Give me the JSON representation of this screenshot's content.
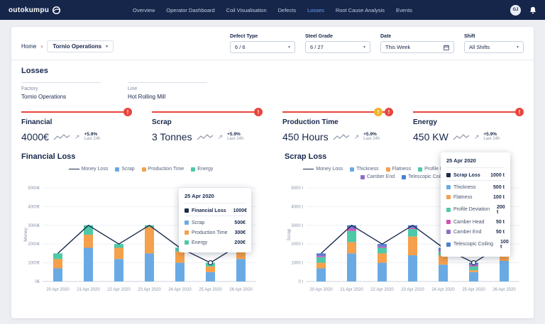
{
  "header": {
    "logo": "outokumpu",
    "avatar": "GJ",
    "nav": [
      {
        "label": "Overview",
        "active": false
      },
      {
        "label": "Operator Dashboard",
        "active": false
      },
      {
        "label": "Coil Visualisation",
        "active": false
      },
      {
        "label": "Defects",
        "active": false
      },
      {
        "label": "Losses",
        "active": true
      },
      {
        "label": "Root Cause Analysis",
        "active": false
      },
      {
        "label": "Events",
        "active": false
      }
    ]
  },
  "breadcrumb": {
    "home": "Home",
    "current": "Tornio Operations"
  },
  "filters": [
    {
      "label": "Defect Type",
      "value": "6 / 6",
      "icon": "chevron-down"
    },
    {
      "label": "Steel Grade",
      "value": "6 / 27",
      "icon": "chevron-down"
    },
    {
      "label": "Date",
      "value": "This Week",
      "icon": "calendar"
    },
    {
      "label": "Shift",
      "value": "All Shifts",
      "icon": "chevron-down"
    }
  ],
  "page": {
    "title": "Losses"
  },
  "info": {
    "factory_label": "Factory",
    "factory_value": "Tornio Operations",
    "line_label": "Line",
    "line_value": "Hot Rolling Mill"
  },
  "kpis": [
    {
      "title": "Financial",
      "value": "4000€",
      "delta": "+5.9%",
      "period": "Last 24h",
      "alerts": [
        "red"
      ]
    },
    {
      "title": "Scrap",
      "value": "3 Tonnes",
      "delta": "+5.9%",
      "period": "Last 24h",
      "alerts": [
        "red"
      ]
    },
    {
      "title": "Production Time",
      "value": "450 Hours",
      "delta": "+5.9%",
      "period": "Last 24h",
      "alerts": [
        "yellow",
        "red"
      ]
    },
    {
      "title": "Energy",
      "value": "450 KW",
      "delta": "+5.9%",
      "period": "Last 24h",
      "alerts": [
        "red"
      ]
    }
  ],
  "colors": {
    "navy": "#16264a",
    "red": "#e8453c",
    "yellow": "#f0b429",
    "blue": "#6aaae4",
    "orange": "#f5a04a",
    "teal": "#4ec9a8",
    "pink": "#cd53b5",
    "purple": "#8d6cc9",
    "blue2": "#4a7fd4"
  },
  "chart_data": [
    {
      "type": "bar",
      "title": "Financial Loss",
      "ylabel": "Money",
      "tick_suffix": "€",
      "ylim": [
        0,
        5000
      ],
      "yticks": [
        0,
        1000,
        2000,
        3000,
        4000,
        5000
      ],
      "categories": [
        "20 Apr 2020",
        "21 Apr 2020",
        "22 Apr 2020",
        "23 Apr 2020",
        "24 Apr 2020",
        "25 Apr 2020",
        "26 Apr 2020"
      ],
      "line": {
        "name": "Money Loss",
        "color": "#1b2b4d",
        "values": [
          1500,
          3000,
          2000,
          3000,
          1800,
          1000,
          2000
        ]
      },
      "series": [
        {
          "name": "Scrap",
          "color": "#6aaae4",
          "values": [
            700,
            1800,
            1200,
            1500,
            1000,
            500,
            1200
          ]
        },
        {
          "name": "Production Time",
          "color": "#f5a04a",
          "values": [
            500,
            700,
            600,
            1400,
            600,
            300,
            600
          ]
        },
        {
          "name": "Energy",
          "color": "#4ec9a8",
          "values": [
            300,
            500,
            200,
            100,
            200,
            200,
            200
          ]
        }
      ],
      "highlight_index": 5,
      "tooltip": {
        "title": "25 Apr 2020",
        "total": {
          "label": "Financial Loss",
          "value": "1000€",
          "color": "#1b2b4d"
        },
        "rows": [
          {
            "label": "Scrap",
            "value": "500€",
            "color": "#6aaae4"
          },
          {
            "label": "Production Time",
            "value": "300€",
            "color": "#f5a04a"
          },
          {
            "label": "Energy",
            "value": "200€",
            "color": "#4ec9a8"
          }
        ]
      }
    },
    {
      "type": "bar",
      "title": "Scrap Loss",
      "ylabel": "Scrap",
      "tick_suffix": " t",
      "ylim": [
        0,
        5000
      ],
      "yticks": [
        0,
        1000,
        2000,
        3000,
        4000,
        5000
      ],
      "categories": [
        "20 Apr 2020",
        "21 Apr 2020",
        "22 Apr 2020",
        "23 Apr 2020",
        "24 Apr 2020",
        "25 Apr 2020",
        "26 Apr 2020"
      ],
      "line": {
        "name": "Money Loss",
        "color": "#1b2b4d",
        "values": [
          1500,
          3000,
          2000,
          3000,
          1800,
          1000,
          2000
        ]
      },
      "series": [
        {
          "name": "Thickness",
          "color": "#6aaae4",
          "values": [
            700,
            1500,
            1000,
            1400,
            900,
            500,
            1100
          ]
        },
        {
          "name": "Flatness",
          "color": "#f5a04a",
          "values": [
            300,
            600,
            500,
            1000,
            500,
            100,
            500
          ]
        },
        {
          "name": "Profile Deviation",
          "color": "#4ec9a8",
          "values": [
            300,
            600,
            300,
            400,
            200,
            200,
            250
          ]
        },
        {
          "name": "Camber Head",
          "color": "#cd53b5",
          "values": [
            50,
            100,
            50,
            50,
            50,
            50,
            50
          ]
        },
        {
          "name": "Camber End",
          "color": "#8d6cc9",
          "values": [
            50,
            100,
            50,
            50,
            50,
            50,
            50
          ]
        },
        {
          "name": "Telescopic Coiling",
          "color": "#4a7fd4",
          "values": [
            100,
            100,
            100,
            100,
            100,
            100,
            50
          ]
        }
      ],
      "highlight_index": 5,
      "tooltip": {
        "title": "25 Apr 2020",
        "total": {
          "label": "Scrap Loss",
          "value": "1000 t",
          "color": "#1b2b4d"
        },
        "rows": [
          {
            "label": "Thickness",
            "value": "500 t",
            "color": "#6aaae4"
          },
          {
            "label": "Flatness",
            "value": "100 t",
            "color": "#f5a04a"
          },
          {
            "label": "Profile Deviation",
            "value": "200 t",
            "color": "#4ec9a8"
          },
          {
            "label": "Camber Head",
            "value": "50 t",
            "color": "#cd53b5"
          },
          {
            "label": "Camber End",
            "value": "50 t",
            "color": "#8d6cc9"
          },
          {
            "label": "Telescopic Coiling",
            "value": "100 t",
            "color": "#4a7fd4"
          }
        ]
      }
    }
  ]
}
